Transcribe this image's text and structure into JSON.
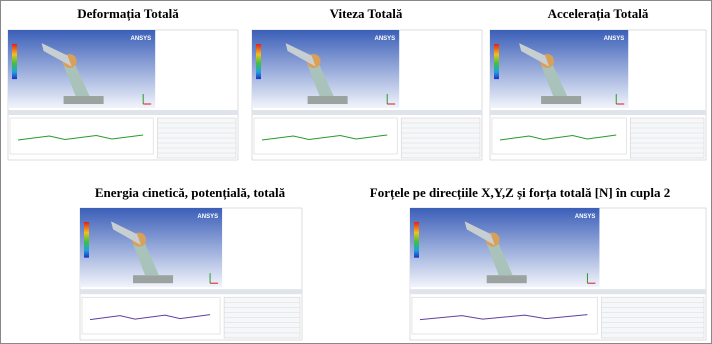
{
  "panels": [
    {
      "title": "Deformația Totală",
      "logo": "ANSYS"
    },
    {
      "title": "Viteza Totală",
      "logo": "ANSYS"
    },
    {
      "title": "Accelerația Totală",
      "logo": "ANSYS"
    },
    {
      "title": "Energia cinetică, potențială, totală",
      "logo": "ANSYS"
    },
    {
      "title": "Forțele pe direcțiile X,Y,Z și forța totală [N] în cupla 2",
      "logo": "ANSYS"
    }
  ]
}
